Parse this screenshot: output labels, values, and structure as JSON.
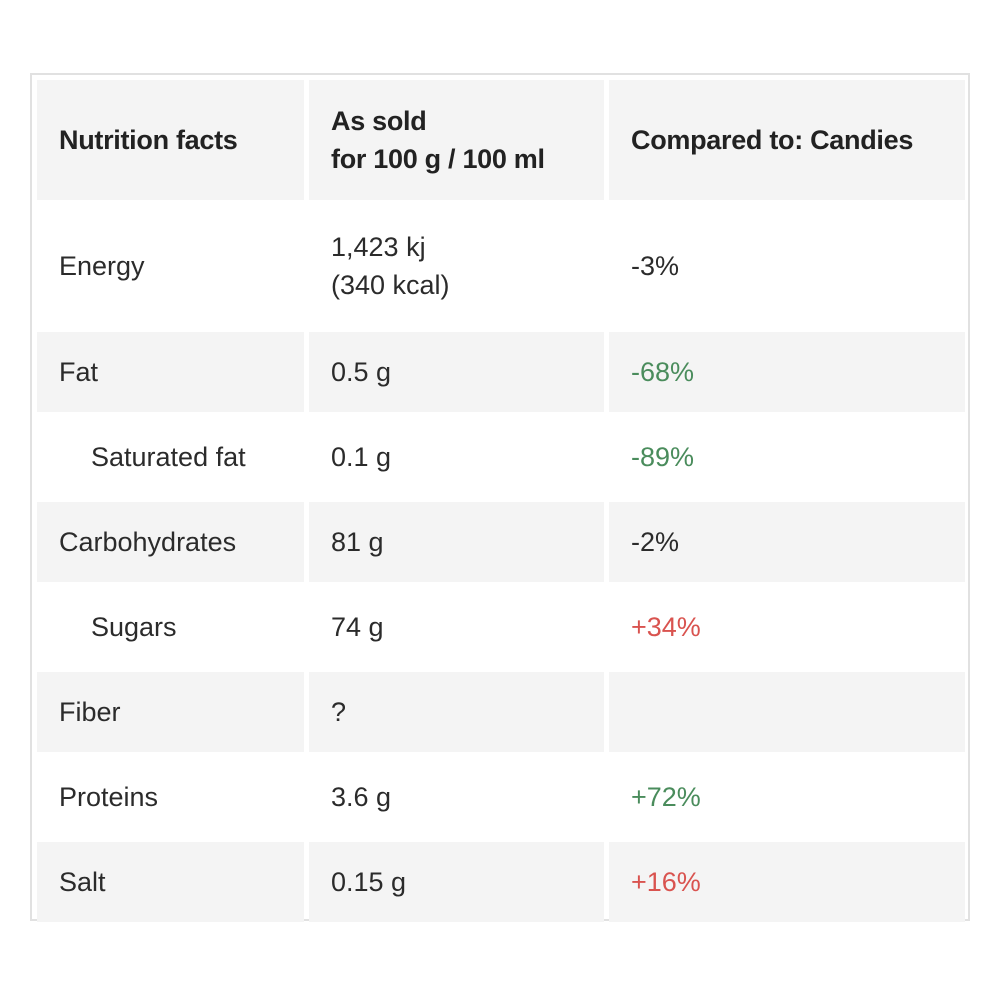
{
  "table": {
    "headers": {
      "name": "Nutrition facts",
      "as_sold": "As sold\nfor 100 g / 100 ml",
      "compared": "Compared to: Candies"
    },
    "rows": [
      {
        "name": "Energy",
        "value": "1,423 kj\n(340 kcal)",
        "compare": "-3%",
        "compare_status": "neutral",
        "sub": false
      },
      {
        "name": "Fat",
        "value": "0.5 g",
        "compare": "-68%",
        "compare_status": "good",
        "sub": false
      },
      {
        "name": "Saturated fat",
        "value": "0.1 g",
        "compare": "-89%",
        "compare_status": "good",
        "sub": true
      },
      {
        "name": "Carbohydrates",
        "value": "81 g",
        "compare": "-2%",
        "compare_status": "neutral",
        "sub": false
      },
      {
        "name": "Sugars",
        "value": "74 g",
        "compare": "+34%",
        "compare_status": "bad",
        "sub": true
      },
      {
        "name": "Fiber",
        "value": "?",
        "compare": "",
        "compare_status": "neutral",
        "sub": false
      },
      {
        "name": "Proteins",
        "value": "3.6 g",
        "compare": "+72%",
        "compare_status": "good",
        "sub": false
      },
      {
        "name": "Salt",
        "value": "0.15 g",
        "compare": "+16%",
        "compare_status": "bad",
        "sub": false
      }
    ]
  },
  "colors": {
    "good": "#4a8c5c",
    "bad": "#d9534f",
    "header_bg": "#f4f4f4",
    "border": "#e1e1e1"
  }
}
